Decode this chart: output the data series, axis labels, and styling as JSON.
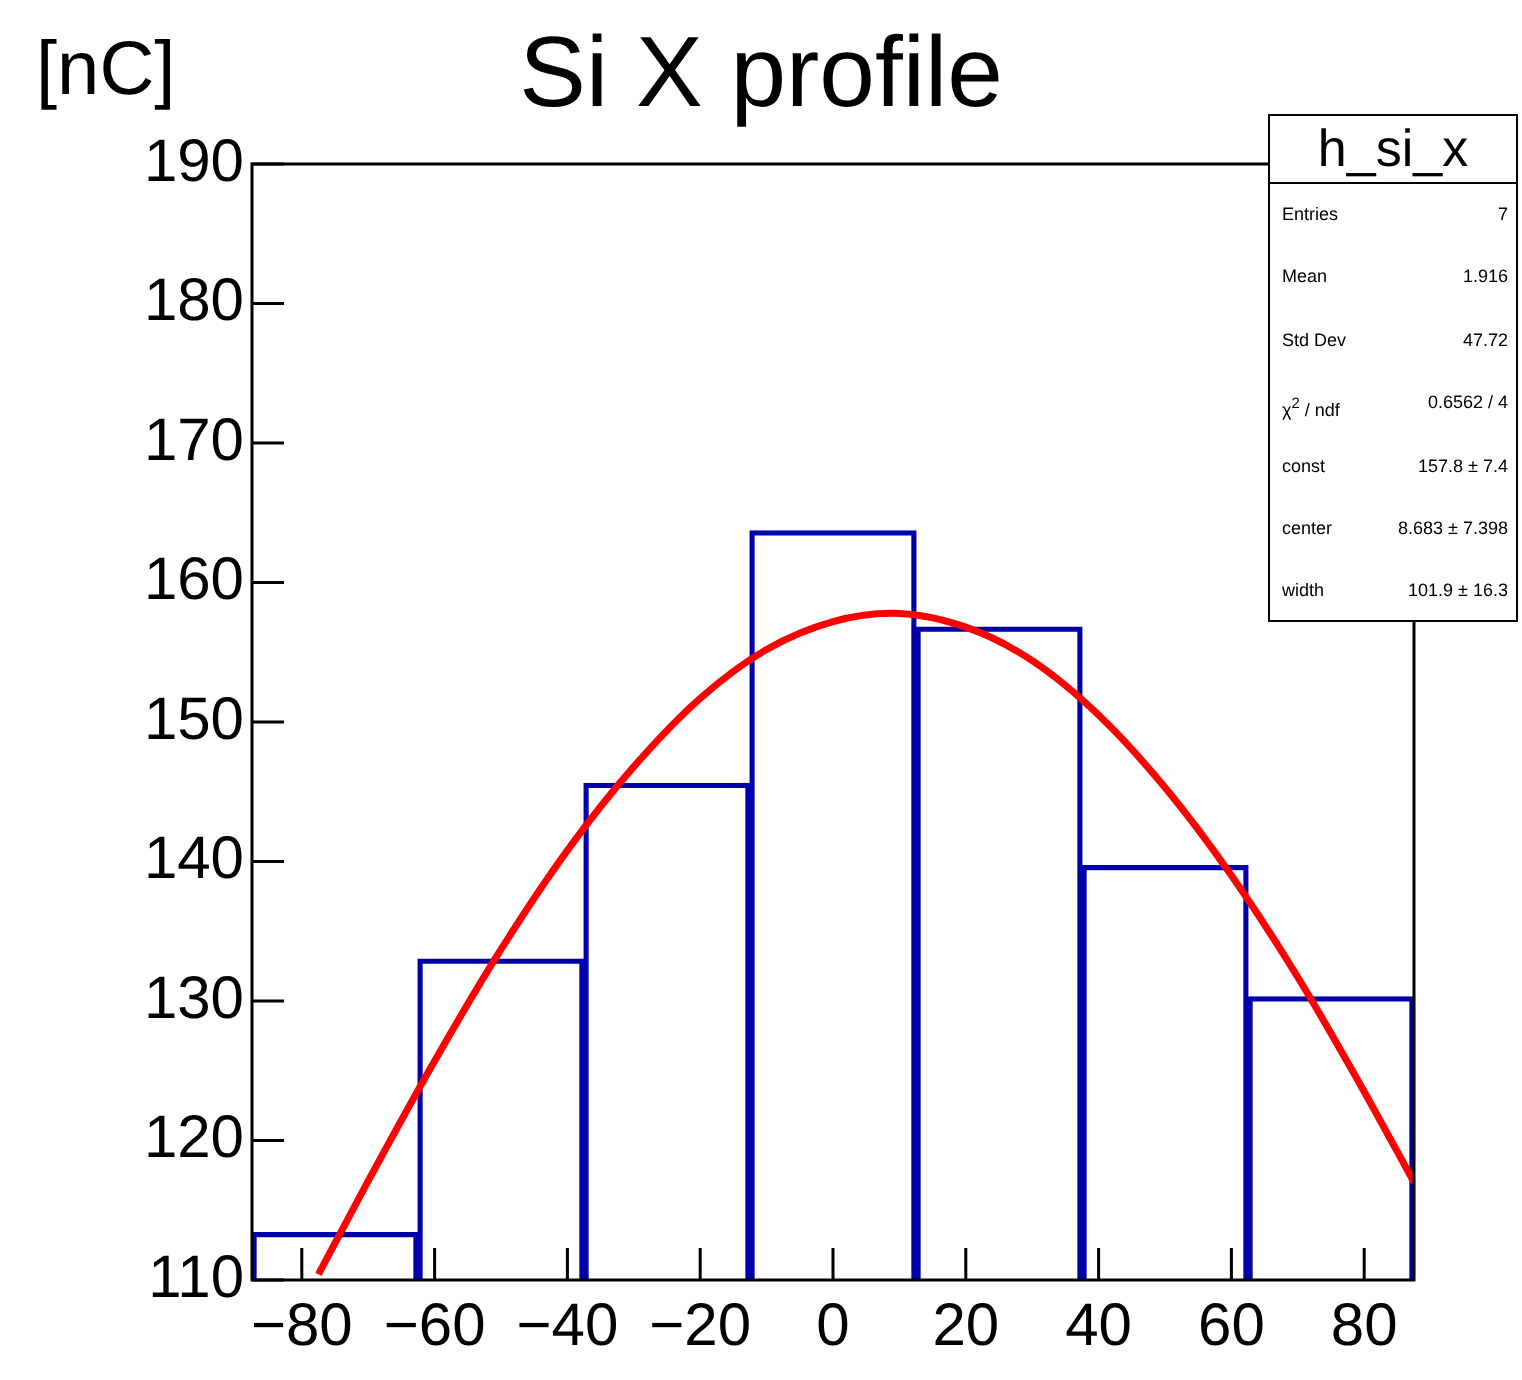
{
  "chart_data": {
    "type": "histogram",
    "title": "Si X profile",
    "ylabel": "[nC]",
    "bins": [
      -87.5,
      -62.5,
      -37.5,
      -12.5,
      12.5,
      37.5,
      62.5,
      87.5
    ],
    "values": [
      113.4,
      133.0,
      145.6,
      163.7,
      156.8,
      139.7,
      130.3
    ],
    "color": "#0000aa",
    "series": [
      {
        "type": "line",
        "color": "#ff0000",
        "x": [
          -77.5,
          -70,
          -60,
          -50,
          -40,
          -30,
          -20,
          -10,
          0,
          8.7,
          20,
          30,
          40,
          50,
          60,
          70,
          80,
          87.5
        ],
        "values": [
          110.4,
          117.1,
          125.7,
          133.7,
          140.8,
          146.8,
          151.7,
          155.2,
          157.2,
          157.8,
          156.8,
          154.4,
          150.5,
          145.3,
          139.0,
          131.7,
          123.5,
          117.0
        ]
      }
    ],
    "xlim": [
      -87.5,
      87.5
    ],
    "xticks": [
      -80,
      -60,
      -40,
      -20,
      0,
      20,
      40,
      60,
      80
    ],
    "ylim": [
      110,
      190
    ],
    "yticks": [
      110,
      120,
      130,
      140,
      150,
      160,
      170,
      180,
      190
    ],
    "grid": false,
    "legend": false,
    "annotations": [
      "h_si_x",
      "Entries",
      "7",
      "Mean",
      "1.916",
      "Std Dev",
      "47.72",
      "χ$^{2}$ / ndf",
      "0.6562 / 4",
      "const",
      "157.8  ± 7.4",
      "center",
      "8.683  ± 7.398",
      "width",
      "101.9  ± 16.3"
    ]
  }
}
